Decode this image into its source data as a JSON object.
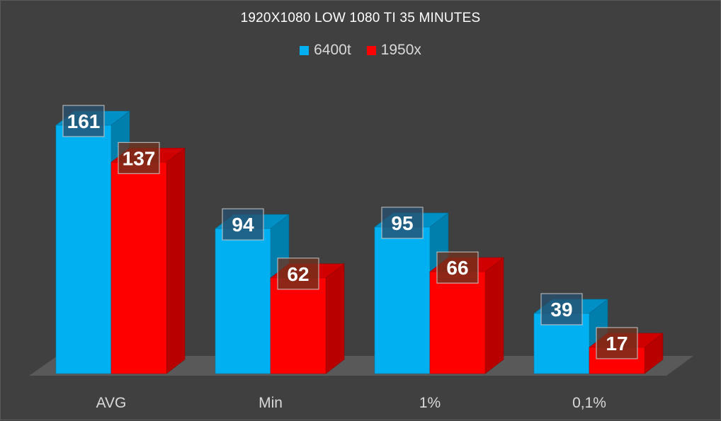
{
  "chart_data": {
    "type": "bar",
    "title": "1920X1080 LOW 1080 TI 35 MINUTES",
    "categories": [
      "AVG",
      "Min",
      "1%",
      "0,1%"
    ],
    "series": [
      {
        "name": "6400t",
        "values": [
          161,
          94,
          95,
          39
        ],
        "color": "#00b0f0"
      },
      {
        "name": "1950x",
        "values": [
          137,
          62,
          66,
          17
        ],
        "color": "#ff0000"
      }
    ],
    "ylim": [
      0,
      180
    ],
    "xlabel": "",
    "ylabel": "",
    "grid": false,
    "legend_position": "top",
    "bar_style": "3d-column",
    "colors": {
      "background": "#404040",
      "floor": "#595959",
      "axis_text": "#d9d9d9",
      "title_text": "#ffffff"
    }
  }
}
